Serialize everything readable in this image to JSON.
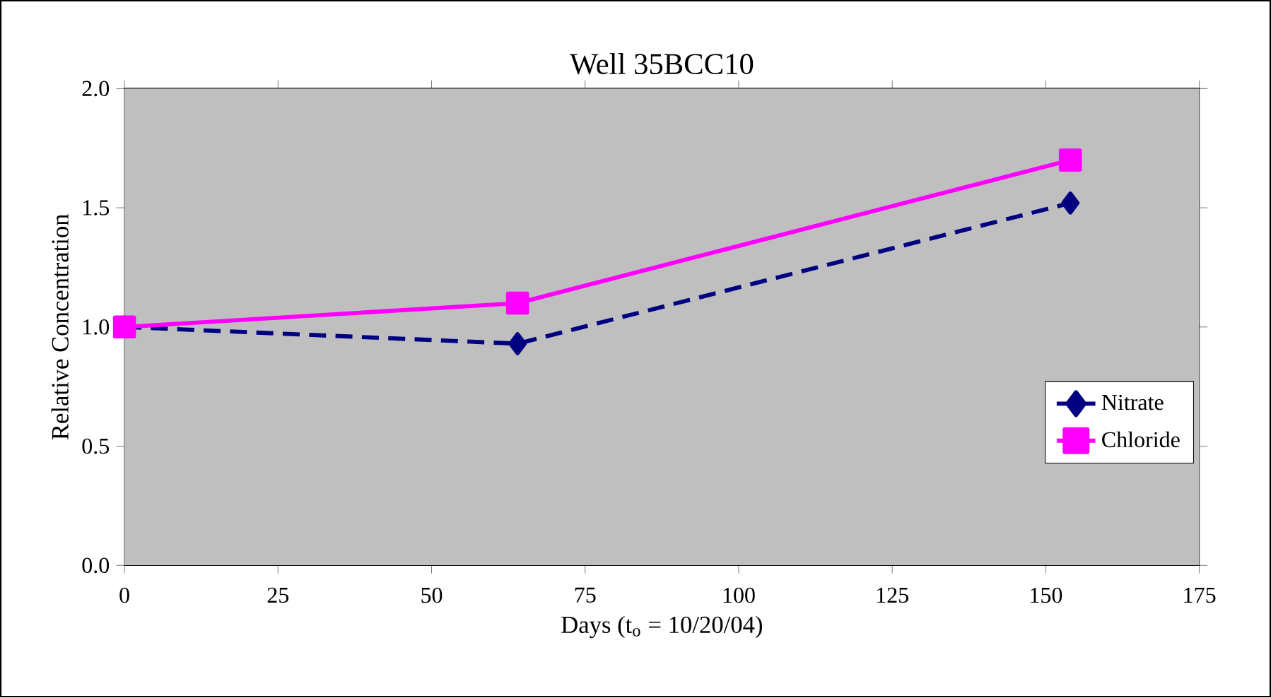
{
  "chart_data": {
    "type": "line",
    "title": "Well 35BCC10",
    "xlabel": "Days (t$_{o}$ = 10/20/04)",
    "ylabel": "Relative Concentration",
    "xlim": [
      0,
      175
    ],
    "xticks": [
      0,
      25,
      50,
      75,
      100,
      125,
      150,
      175
    ],
    "ylim": [
      0,
      2
    ],
    "yticks": [
      {
        "value": 0,
        "label": "0.0"
      },
      {
        "value": 0.5,
        "label": "0.5"
      },
      {
        "value": 1,
        "label": "1.0"
      },
      {
        "value": 1.5,
        "label": "1.5"
      },
      {
        "value": 2,
        "label": "2.0"
      }
    ],
    "grid": "y",
    "legend": "right",
    "series": [
      {
        "name": "Nitrate",
        "color": "#000080",
        "marker": "diamond",
        "line_style": "dashed",
        "x": [
          0,
          64,
          154
        ],
        "values": [
          1.0,
          0.93,
          1.52
        ]
      },
      {
        "name": "Chloride",
        "color": "#ff00ff",
        "marker": "square",
        "line_style": "solid",
        "x": [
          0,
          64,
          154
        ],
        "values": [
          1.0,
          1.1,
          1.7
        ]
      }
    ]
  }
}
